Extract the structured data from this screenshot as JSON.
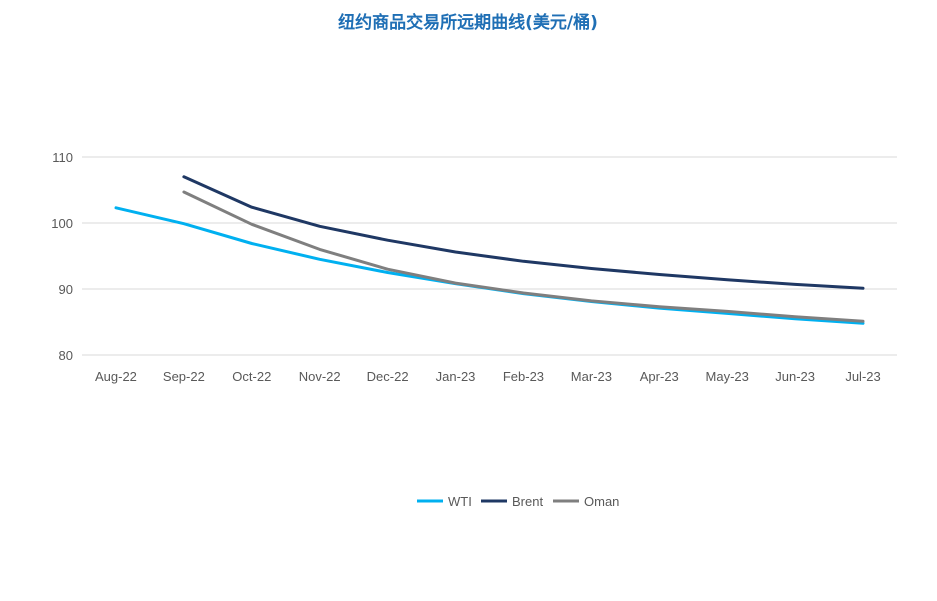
{
  "chart_data": {
    "type": "line",
    "title": "纽约商品交易所远期曲线(美元/桶)",
    "xlabel": "",
    "ylabel": "",
    "categories": [
      "Aug-22",
      "Sep-22",
      "Oct-22",
      "Nov-22",
      "Dec-22",
      "Jan-23",
      "Feb-23",
      "Mar-23",
      "Apr-23",
      "May-23",
      "Jun-23",
      "Jul-23"
    ],
    "ylim": [
      80,
      110
    ],
    "yticks": [
      80,
      90,
      100,
      110
    ],
    "grid": true,
    "legend_position": "bottom",
    "series": [
      {
        "name": "WTI",
        "color": "#00B0F0",
        "values": [
          102.3,
          99.9,
          96.9,
          94.5,
          92.5,
          90.8,
          89.3,
          88.1,
          87.1,
          86.3,
          85.5,
          84.8
        ]
      },
      {
        "name": "Brent",
        "color": "#1F3864",
        "values": [
          null,
          107.0,
          102.4,
          99.5,
          97.4,
          95.6,
          94.2,
          93.1,
          92.2,
          91.4,
          90.7,
          90.1
        ]
      },
      {
        "name": "Oman",
        "color": "#7F7F7F",
        "values": [
          null,
          104.7,
          99.8,
          96.0,
          93.0,
          90.9,
          89.4,
          88.2,
          87.3,
          86.6,
          85.8,
          85.1
        ]
      }
    ]
  },
  "colors": {
    "title": "#1F6FB5",
    "grid": "#D9D9D9",
    "tick_text": "#595959"
  }
}
